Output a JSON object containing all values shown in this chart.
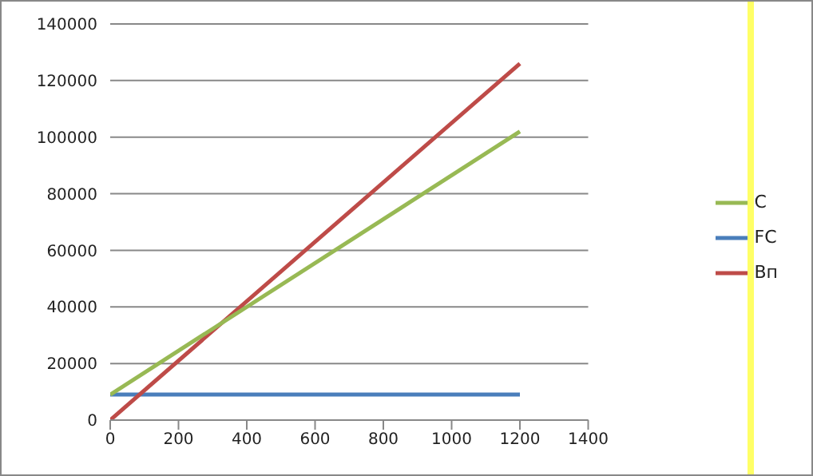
{
  "chart_data": {
    "type": "line",
    "x": [
      0,
      1200
    ],
    "series": [
      {
        "name": "FC",
        "color": "#4a7ebb",
        "values": [
          9000,
          9000
        ]
      },
      {
        "name": "Вп",
        "color": "#be4b48",
        "values": [
          0,
          126000
        ]
      },
      {
        "name": "C",
        "color": "#98b954",
        "values": [
          9000,
          102000
        ]
      }
    ],
    "xlim": [
      0,
      1400
    ],
    "xticks": [
      0,
      200,
      400,
      600,
      800,
      1000,
      1200,
      1400
    ],
    "ylim": [
      0,
      140000
    ],
    "yticks": [
      0,
      20000,
      40000,
      60000,
      80000,
      100000,
      120000,
      140000
    ],
    "grid": "y",
    "legend": "right",
    "marker": "none",
    "line_style": "solid"
  }
}
